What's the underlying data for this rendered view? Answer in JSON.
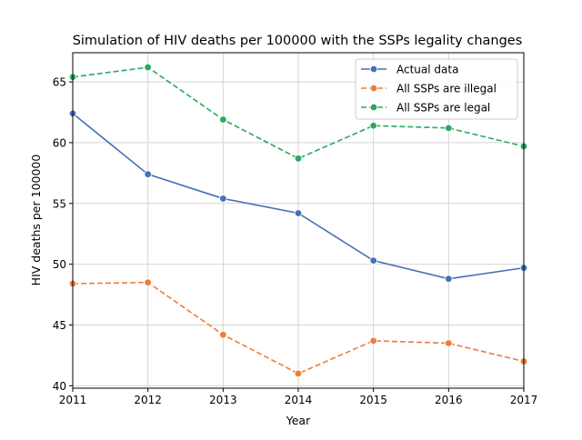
{
  "chart_data": {
    "type": "line",
    "title": "Simulation of HIV deaths per 100000 with the SSPs legality changes",
    "xlabel": "Year",
    "ylabel": "HIV deaths per 100000",
    "x": [
      2011,
      2012,
      2013,
      2014,
      2015,
      2016,
      2017
    ],
    "xlim": [
      2011,
      2017
    ],
    "ylim": [
      39.8,
      67.4
    ],
    "xticks": [
      "2011",
      "2012",
      "2013",
      "2014",
      "2015",
      "2016",
      "2017"
    ],
    "yticks": [
      40,
      45,
      50,
      55,
      60,
      65
    ],
    "grid": true,
    "legend_position": "top-right",
    "series": [
      {
        "name": "Actual data",
        "color": "#4470b8",
        "dash": "solid",
        "marker": "circle",
        "values": [
          62.4,
          57.4,
          55.4,
          54.2,
          50.3,
          48.8,
          49.7
        ]
      },
      {
        "name": "All SSPs are illegal",
        "color": "#ec7d3a",
        "dash": "dashed",
        "marker": "circle",
        "values": [
          48.4,
          48.5,
          44.2,
          41.0,
          43.7,
          43.5,
          42.0
        ]
      },
      {
        "name": "All SSPs are legal",
        "color": "#2aa85e",
        "dash": "dashed",
        "marker": "circle",
        "values": [
          65.4,
          66.2,
          61.9,
          58.7,
          61.4,
          61.2,
          59.7
        ]
      }
    ]
  }
}
